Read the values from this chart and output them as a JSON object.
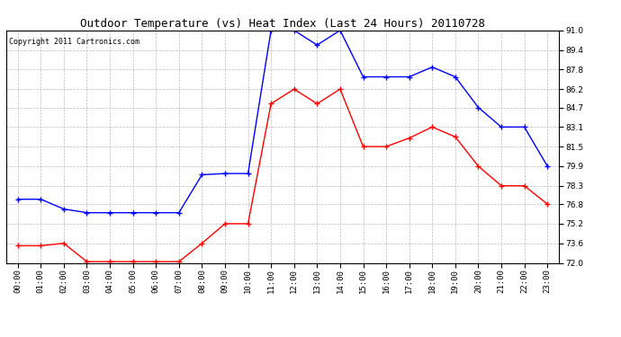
{
  "title": "Outdoor Temperature (vs) Heat Index (Last 24 Hours) 20110728",
  "copyright": "Copyright 2011 Cartronics.com",
  "hours": [
    "00:00",
    "01:00",
    "02:00",
    "03:00",
    "04:00",
    "05:00",
    "06:00",
    "07:00",
    "08:00",
    "09:00",
    "10:00",
    "11:00",
    "12:00",
    "13:00",
    "14:00",
    "15:00",
    "16:00",
    "17:00",
    "18:00",
    "19:00",
    "20:00",
    "21:00",
    "22:00",
    "23:00"
  ],
  "blue_values": [
    77.2,
    77.2,
    76.4,
    76.1,
    76.1,
    76.1,
    76.1,
    76.1,
    79.2,
    79.3,
    79.3,
    91.0,
    91.0,
    89.8,
    91.0,
    87.2,
    87.2,
    87.2,
    88.0,
    87.2,
    84.7,
    83.1,
    83.1,
    79.9
  ],
  "red_values": [
    73.4,
    73.4,
    73.6,
    72.1,
    72.1,
    72.1,
    72.1,
    72.1,
    73.6,
    75.2,
    75.2,
    85.0,
    86.2,
    85.0,
    86.2,
    81.5,
    81.5,
    82.2,
    83.1,
    82.3,
    79.9,
    78.3,
    78.3,
    76.8
  ],
  "blue_color": "#0000FF",
  "red_color": "#FF0000",
  "bg_color": "#FFFFFF",
  "grid_color": "#BBBBBB",
  "ylim": [
    72.0,
    91.0
  ],
  "yticks": [
    72.0,
    73.6,
    75.2,
    76.8,
    78.3,
    79.9,
    81.5,
    83.1,
    84.7,
    86.2,
    87.8,
    89.4,
    91.0
  ],
  "title_fontsize": 9,
  "copyright_fontsize": 6,
  "tick_fontsize": 6.5
}
